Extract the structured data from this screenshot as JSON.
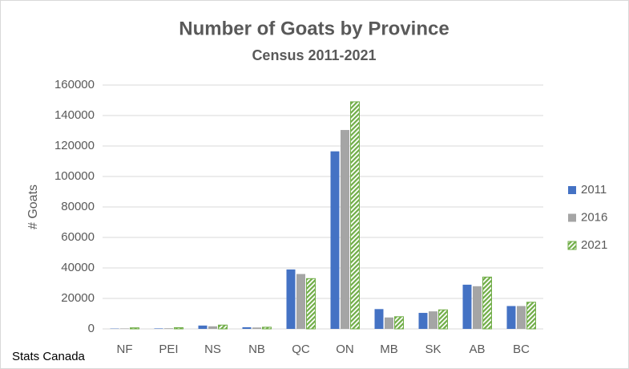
{
  "chart_data": {
    "type": "bar",
    "title": "Number of Goats by Province",
    "subtitle": "Census 2011-2021",
    "y_label": "# Goats",
    "source": "Stats Canada",
    "categories": [
      "NF",
      "PEI",
      "NS",
      "NB",
      "QC",
      "ON",
      "MB",
      "SK",
      "AB",
      "BC"
    ],
    "series": [
      {
        "name": "2011",
        "color": "#4472c4",
        "values": [
          200,
          300,
          2200,
          1100,
          39000,
          116500,
          13000,
          10500,
          29000,
          15000
        ]
      },
      {
        "name": "2016",
        "color": "#a5a5a5",
        "values": [
          300,
          400,
          1700,
          900,
          36000,
          130500,
          7500,
          11500,
          28000,
          15000
        ]
      },
      {
        "name": "2021",
        "color": "#70ad47",
        "hatch": true,
        "values": [
          700,
          800,
          2500,
          1100,
          33000,
          149000,
          8000,
          12500,
          34000,
          17500
        ]
      }
    ],
    "ylim": [
      0,
      160000
    ],
    "yticks": [
      0,
      20000,
      40000,
      60000,
      80000,
      100000,
      120000,
      140000,
      160000
    ],
    "grid": true,
    "legend": "right"
  }
}
